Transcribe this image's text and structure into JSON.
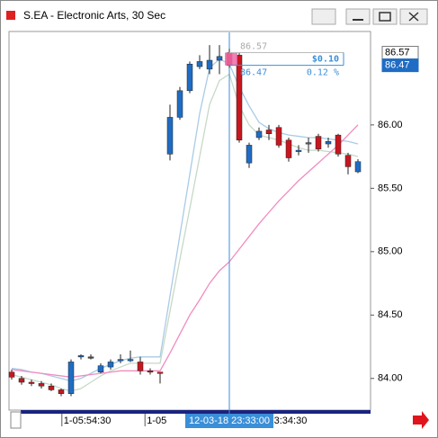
{
  "chart_data": {
    "type": "candlestick",
    "title": "S.EA - Electronic Arts, 30 Sec",
    "open": [
      84.05,
      84.0,
      83.97,
      83.96,
      83.94,
      83.91,
      83.88,
      84.17,
      84.17,
      84.05,
      84.09,
      84.14,
      84.15,
      84.13,
      84.06,
      84.05,
      85.77,
      86.06,
      86.27,
      86.46,
      86.44,
      86.51,
      86.57,
      86.55,
      85.7,
      85.9,
      85.96,
      85.98,
      85.88,
      85.79,
      85.85,
      85.91,
      85.85,
      85.92,
      85.76,
      85.63
    ],
    "high": [
      84.07,
      84.02,
      83.99,
      83.98,
      83.96,
      83.92,
      84.15,
      84.19,
      84.19,
      84.12,
      84.15,
      84.19,
      84.22,
      84.17,
      84.08,
      84.05,
      86.16,
      86.3,
      86.5,
      86.55,
      86.63,
      86.63,
      86.6,
      86.57,
      85.86,
      85.98,
      86.0,
      86.0,
      85.9,
      85.84,
      85.9,
      85.93,
      85.9,
      85.93,
      85.78,
      85.73
    ],
    "low": [
      83.99,
      83.95,
      83.94,
      83.92,
      83.9,
      83.86,
      83.86,
      84.15,
      84.15,
      84.04,
      84.07,
      84.12,
      84.13,
      84.03,
      84.03,
      83.96,
      85.72,
      86.04,
      86.25,
      86.44,
      86.4,
      86.4,
      86.45,
      85.86,
      85.66,
      85.88,
      85.88,
      85.82,
      85.71,
      85.76,
      85.78,
      85.79,
      85.82,
      85.75,
      85.61,
      85.62
    ],
    "close": [
      84.01,
      83.97,
      83.96,
      83.94,
      83.91,
      83.88,
      84.13,
      84.18,
      84.16,
      84.1,
      84.13,
      84.15,
      84.15,
      84.06,
      84.05,
      84.04,
      86.06,
      86.27,
      86.48,
      86.5,
      86.51,
      86.54,
      86.47,
      85.88,
      85.84,
      85.95,
      85.93,
      85.84,
      85.74,
      85.8,
      85.86,
      85.81,
      85.87,
      85.77,
      85.67,
      85.71
    ],
    "up_color": "#1f6cc4",
    "down_color": "#c8161e",
    "moving_averages": [
      {
        "color": "#a9cbe6",
        "values": [
          84.08,
          84.07,
          84.05,
          84.04,
          84.02,
          84.0,
          83.98,
          84.0,
          84.04,
          84.08,
          84.11,
          84.14,
          84.16,
          84.17,
          84.17,
          84.17,
          84.65,
          85.13,
          85.61,
          86.09,
          86.45,
          86.52,
          86.48,
          86.3,
          86.15,
          86.02,
          85.97,
          85.94,
          85.92,
          85.91,
          85.9,
          85.9,
          85.89,
          85.88,
          85.87,
          85.85
        ]
      },
      {
        "color": "#c6d9c7",
        "values": [
          84.03,
          84.01,
          83.99,
          83.97,
          83.95,
          83.92,
          83.9,
          83.92,
          83.97,
          84.02,
          84.06,
          84.09,
          84.12,
          84.12,
          84.12,
          84.12,
          84.53,
          84.94,
          85.34,
          85.75,
          86.16,
          86.35,
          86.4,
          86.15,
          86.0,
          85.92,
          85.9,
          85.88,
          85.85,
          85.82,
          85.8,
          85.8,
          85.79,
          85.78,
          85.77,
          85.75
        ]
      },
      {
        "color": "#f08cc0",
        "values": [
          84.07,
          84.06,
          84.05,
          84.04,
          84.03,
          84.02,
          84.01,
          84.02,
          84.03,
          84.04,
          84.05,
          84.06,
          84.06,
          84.06,
          84.06,
          84.06,
          84.2,
          84.35,
          84.5,
          84.62,
          84.75,
          84.85,
          84.92,
          85.02,
          85.12,
          85.22,
          85.31,
          85.4,
          85.48,
          85.56,
          85.63,
          85.7,
          85.77,
          85.84,
          85.92,
          86.0
        ]
      }
    ],
    "ylim": [
      83.75,
      86.73
    ],
    "yticks": [
      {
        "value": 84,
        "label": "84.00"
      },
      {
        "value": 84.5,
        "label": "84.50"
      },
      {
        "value": 85,
        "label": "85.00"
      },
      {
        "value": 85.5,
        "label": "85.50"
      },
      {
        "value": 86,
        "label": "86.00"
      }
    ],
    "xticks": [
      {
        "value": 7.8,
        "label": "1-05:54:30"
      },
      {
        "value": 16.2,
        "label": "1-05"
      },
      {
        "value": 28.5,
        "label": "23:34:30"
      }
    ],
    "crosshair": {
      "index": 22,
      "label": "12-03-18 23:33:00"
    },
    "price_markers": [
      86.57,
      86.47
    ],
    "measure": {
      "high": 86.57,
      "low": 86.47,
      "change_label": "$0.10",
      "percent_label": "0.12 %"
    }
  }
}
